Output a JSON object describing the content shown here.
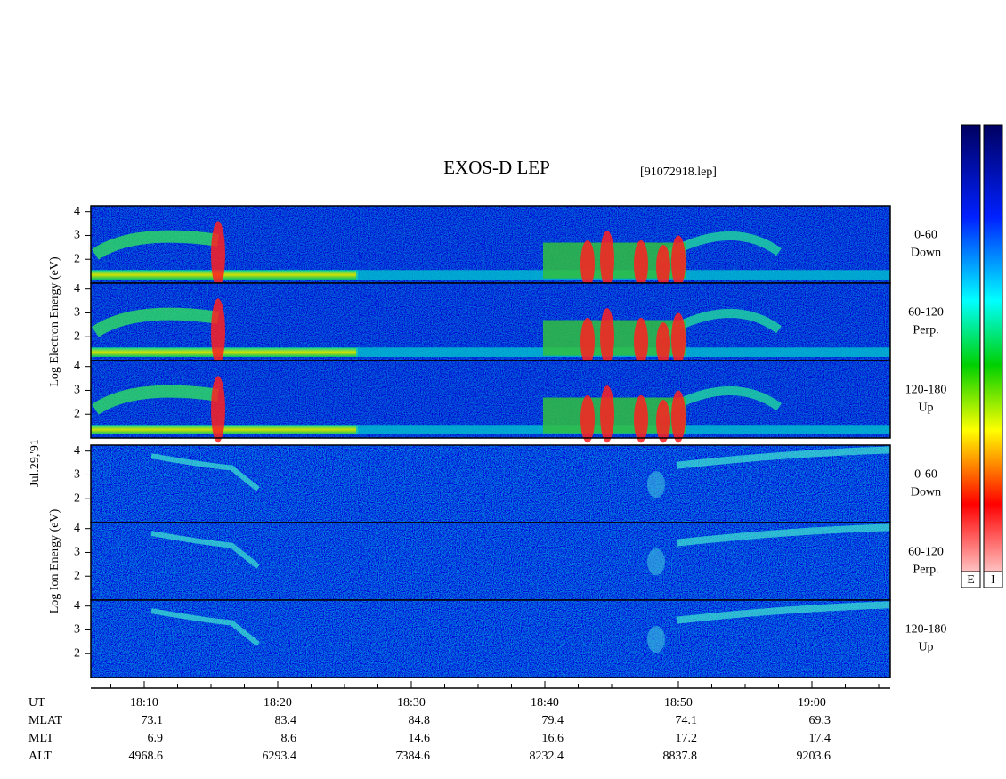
{
  "header": {
    "title": "EXOS-D LEP",
    "file": "[91072918.lep]"
  },
  "date_label": "Jul.29,'91",
  "energy_axis": {
    "ylim": [
      1,
      4.25
    ],
    "yticks": [
      2,
      3,
      4
    ]
  },
  "groups": [
    {
      "axis_label": "Log Electron Energy (eV)",
      "panels": [
        {
          "pitch": "0-60",
          "direction": "Down"
        },
        {
          "pitch": "60-120",
          "direction": "Perp."
        },
        {
          "pitch": "120-180",
          "direction": "Up"
        }
      ]
    },
    {
      "axis_label": "Log Ion Energy (eV)",
      "panels": [
        {
          "pitch": "0-60",
          "direction": "Down"
        },
        {
          "pitch": "60-120",
          "direction": "Perp."
        },
        {
          "pitch": "120-180",
          "direction": "Up"
        }
      ]
    }
  ],
  "ephemeris": {
    "rows": [
      {
        "name": "UT",
        "values": [
          "18:10",
          "18:20",
          "18:30",
          "18:40",
          "18:50",
          "19:00"
        ]
      },
      {
        "name": "MLAT",
        "values": [
          73.1,
          83.4,
          84.8,
          79.4,
          74.1,
          69.3
        ]
      },
      {
        "name": "MLT",
        "values": [
          6.9,
          8.6,
          14.6,
          16.6,
          17.2,
          17.4
        ]
      },
      {
        "name": "ALT",
        "values": [
          4968.6,
          6293.4,
          7384.6,
          8232.4,
          8837.8,
          9203.6
        ]
      }
    ]
  },
  "colorbar": {
    "labels": [
      "E",
      "I"
    ]
  }
}
